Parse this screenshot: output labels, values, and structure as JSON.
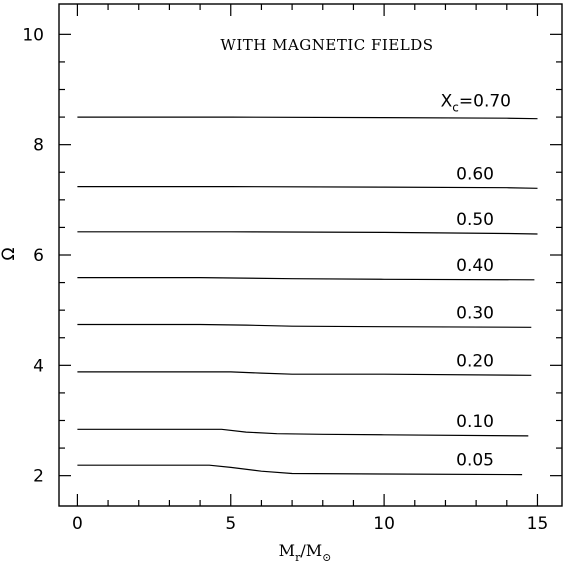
{
  "chart_data": {
    "type": "line",
    "title": "WITH MAGNETIC FIELDS",
    "xlabel": "M_r/M_⊙",
    "ylabel": "Ω",
    "xlim": [
      -0.6,
      15.8
    ],
    "ylim": [
      1.45,
      10.55
    ],
    "xticks": [
      0,
      5,
      10,
      15
    ],
    "yticks": [
      2,
      4,
      6,
      8,
      10
    ],
    "grid": false,
    "legend": "none",
    "series": [
      {
        "name": "X_c=0.70",
        "x": [
          0,
          5,
          10,
          14,
          15
        ],
        "y": [
          8.5,
          8.5,
          8.49,
          8.48,
          8.47
        ]
      },
      {
        "name": "0.60",
        "x": [
          0,
          5,
          10,
          14,
          15
        ],
        "y": [
          7.24,
          7.24,
          7.23,
          7.22,
          7.21
        ]
      },
      {
        "name": "0.50",
        "x": [
          0,
          5,
          10,
          14,
          15
        ],
        "y": [
          6.42,
          6.42,
          6.41,
          6.39,
          6.38
        ]
      },
      {
        "name": "0.40",
        "x": [
          0,
          4,
          7,
          10,
          14.9
        ],
        "y": [
          5.59,
          5.59,
          5.57,
          5.56,
          5.55
        ]
      },
      {
        "name": "0.30",
        "x": [
          0,
          4,
          5.5,
          7,
          10,
          14.8
        ],
        "y": [
          4.74,
          4.74,
          4.73,
          4.71,
          4.7,
          4.69
        ]
      },
      {
        "name": "0.20",
        "x": [
          0,
          5,
          6,
          7,
          10,
          14.8
        ],
        "y": [
          3.88,
          3.88,
          3.86,
          3.84,
          3.84,
          3.82
        ]
      },
      {
        "name": "0.10",
        "x": [
          0,
          4.7,
          5.5,
          6.5,
          8,
          10,
          14.7
        ],
        "y": [
          2.84,
          2.84,
          2.79,
          2.76,
          2.75,
          2.74,
          2.72
        ]
      },
      {
        "name": "0.05",
        "x": [
          0,
          4.3,
          5,
          6,
          7,
          10,
          14.5
        ],
        "y": [
          2.19,
          2.19,
          2.15,
          2.08,
          2.04,
          2.03,
          2.02
        ]
      }
    ]
  }
}
